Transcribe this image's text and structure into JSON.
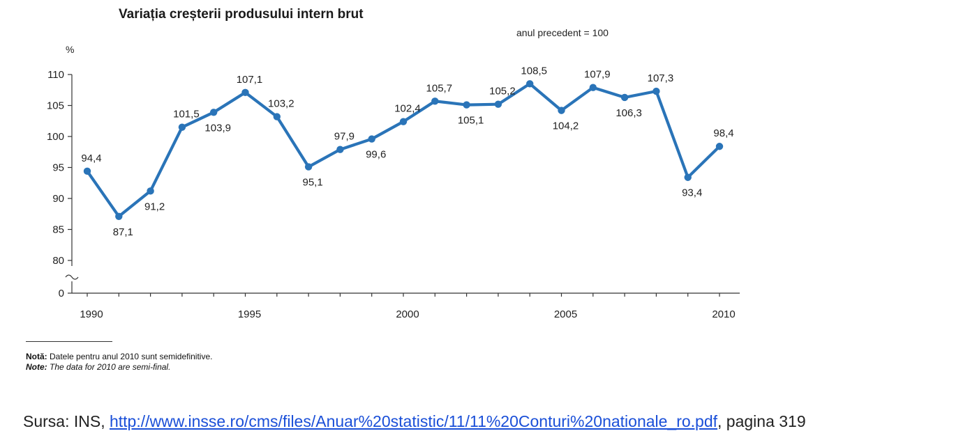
{
  "chart_data": {
    "type": "line",
    "title": "Variația creșterii produsului intern brut",
    "subtitle": "anul precedent = 100",
    "ylabel": "%",
    "xlabel": "",
    "ylim": [
      80,
      110
    ],
    "yticks": [
      "110",
      "105",
      "100",
      "95",
      "90",
      "85",
      "80",
      "0"
    ],
    "xticks": [
      "1990",
      "1995",
      "2000",
      "2005",
      "2010"
    ],
    "x": [
      1990,
      1991,
      1992,
      1993,
      1994,
      1995,
      1996,
      1997,
      1998,
      1999,
      2000,
      2001,
      2002,
      2003,
      2004,
      2005,
      2006,
      2007,
      2008,
      2009,
      2010
    ],
    "values": [
      94.4,
      87.1,
      91.2,
      101.5,
      103.9,
      107.1,
      103.2,
      95.1,
      97.9,
      99.6,
      102.4,
      105.7,
      105.1,
      105.2,
      108.5,
      104.2,
      107.9,
      106.3,
      107.3,
      93.4,
      98.4
    ],
    "labels": [
      "94,4",
      "87,1",
      "91,2",
      "101,5",
      "103,9",
      "107,1",
      "103,2",
      "95,1",
      "97,9",
      "99,6",
      "102,4",
      "105,7",
      "105,1",
      "105,2",
      "108,5",
      "104,2",
      "107,9",
      "106,3",
      "107,3",
      "93,4",
      "98,4"
    ],
    "label_positions": [
      "above",
      "below",
      "below",
      "above",
      "below",
      "above",
      "above",
      "below",
      "above",
      "below",
      "above",
      "above",
      "below",
      "above",
      "above",
      "below",
      "above",
      "below",
      "above",
      "below",
      "above"
    ],
    "axis_break": true,
    "grid": false,
    "color": "#2a74b8"
  },
  "footnotes": {
    "ro_bold": "Notă:",
    "ro_text": " Datele pentru anul 2010 sunt semidefinitive.",
    "en_bold": "Note:",
    "en_text": " The data for 2010 are semi-final."
  },
  "source": {
    "prefix": "Sursa: INS, ",
    "link": "http://www.insse.ro/cms/files/Anuar%20statistic/11/11%20Conturi%20nationale_ro.pdf",
    "suffix": ", pagina 319"
  }
}
